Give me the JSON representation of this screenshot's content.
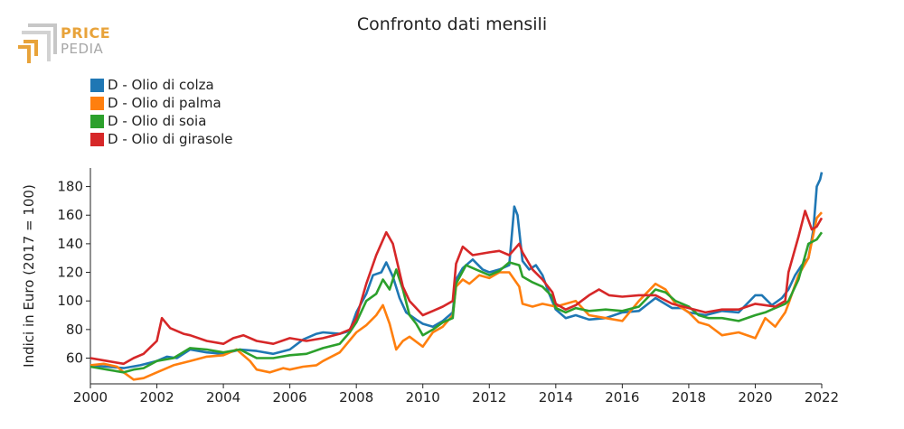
{
  "title": "Confronto dati mensili",
  "logo": {
    "line1": "PRICE",
    "line2": "PEDIA"
  },
  "chart_data": {
    "type": "line",
    "title": "Confronto dati mensili",
    "xlabel": "",
    "ylabel": "Indici in Euro (2017 = 100)",
    "xlim": [
      2000,
      2022
    ],
    "ylim": [
      42,
      193
    ],
    "x_ticks": [
      2000,
      2002,
      2004,
      2006,
      2008,
      2010,
      2012,
      2014,
      2016,
      2018,
      2020,
      2022
    ],
    "y_ticks": [
      60,
      80,
      100,
      120,
      140,
      160,
      180
    ],
    "grid": false,
    "legend_position": "top-left",
    "series": [
      {
        "name": "D - Olio di colza",
        "color": "#1f77b4",
        "points": [
          [
            2000,
            55
          ],
          [
            2000.5,
            54
          ],
          [
            2001,
            53
          ],
          [
            2001.5,
            55
          ],
          [
            2002,
            58
          ],
          [
            2002.3,
            61
          ],
          [
            2002.6,
            60
          ],
          [
            2003,
            66
          ],
          [
            2003.5,
            64
          ],
          [
            2004,
            63
          ],
          [
            2004.5,
            66
          ],
          [
            2005,
            65
          ],
          [
            2005.5,
            63
          ],
          [
            2006,
            66
          ],
          [
            2006.4,
            73
          ],
          [
            2006.8,
            77
          ],
          [
            2007,
            78
          ],
          [
            2007.5,
            77
          ],
          [
            2007.8,
            79
          ],
          [
            2008,
            92
          ],
          [
            2008.3,
            105
          ],
          [
            2008.5,
            118
          ],
          [
            2008.75,
            120
          ],
          [
            2008.9,
            127
          ],
          [
            2009.1,
            117
          ],
          [
            2009.3,
            102
          ],
          [
            2009.5,
            92
          ],
          [
            2009.8,
            87
          ],
          [
            2010,
            84
          ],
          [
            2010.3,
            82
          ],
          [
            2010.6,
            86
          ],
          [
            2010.9,
            92
          ],
          [
            2011,
            115
          ],
          [
            2011.2,
            123
          ],
          [
            2011.5,
            129
          ],
          [
            2011.8,
            122
          ],
          [
            2012,
            120
          ],
          [
            2012.3,
            122
          ],
          [
            2012.6,
            125
          ],
          [
            2012.75,
            166
          ],
          [
            2012.85,
            160
          ],
          [
            2013,
            128
          ],
          [
            2013.2,
            122
          ],
          [
            2013.4,
            125
          ],
          [
            2013.6,
            118
          ],
          [
            2013.8,
            105
          ],
          [
            2014,
            94
          ],
          [
            2014.3,
            88
          ],
          [
            2014.6,
            90
          ],
          [
            2015,
            87
          ],
          [
            2015.5,
            88
          ],
          [
            2016,
            92
          ],
          [
            2016.5,
            93
          ],
          [
            2017,
            102
          ],
          [
            2017.5,
            95
          ],
          [
            2017.8,
            95
          ],
          [
            2018,
            92
          ],
          [
            2018.5,
            90
          ],
          [
            2019,
            93
          ],
          [
            2019.5,
            92
          ],
          [
            2020,
            104
          ],
          [
            2020.2,
            104
          ],
          [
            2020.5,
            97
          ],
          [
            2020.8,
            102
          ],
          [
            2021,
            108
          ],
          [
            2021.2,
            118
          ],
          [
            2021.4,
            125
          ],
          [
            2021.6,
            130
          ],
          [
            2021.75,
            150
          ],
          [
            2021.85,
            180
          ],
          [
            2021.95,
            185
          ],
          [
            2022,
            190
          ]
        ]
      },
      {
        "name": "D - Olio di palma",
        "color": "#ff7f0e",
        "points": [
          [
            2000,
            55
          ],
          [
            2000.4,
            56
          ],
          [
            2000.8,
            54
          ],
          [
            2001,
            50
          ],
          [
            2001.3,
            45
          ],
          [
            2001.6,
            46
          ],
          [
            2002,
            50
          ],
          [
            2002.5,
            55
          ],
          [
            2003,
            58
          ],
          [
            2003.5,
            61
          ],
          [
            2004,
            62
          ],
          [
            2004.4,
            66
          ],
          [
            2004.8,
            58
          ],
          [
            2005,
            52
          ],
          [
            2005.4,
            50
          ],
          [
            2005.8,
            53
          ],
          [
            2006,
            52
          ],
          [
            2006.4,
            54
          ],
          [
            2006.8,
            55
          ],
          [
            2007,
            58
          ],
          [
            2007.5,
            64
          ],
          [
            2008,
            78
          ],
          [
            2008.3,
            83
          ],
          [
            2008.6,
            90
          ],
          [
            2008.8,
            97
          ],
          [
            2009,
            84
          ],
          [
            2009.2,
            66
          ],
          [
            2009.4,
            72
          ],
          [
            2009.6,
            75
          ],
          [
            2010,
            68
          ],
          [
            2010.3,
            78
          ],
          [
            2010.6,
            82
          ],
          [
            2010.9,
            90
          ],
          [
            2011,
            110
          ],
          [
            2011.2,
            115
          ],
          [
            2011.4,
            112
          ],
          [
            2011.7,
            118
          ],
          [
            2012,
            116
          ],
          [
            2012.3,
            120
          ],
          [
            2012.6,
            120
          ],
          [
            2012.9,
            110
          ],
          [
            2013,
            98
          ],
          [
            2013.3,
            96
          ],
          [
            2013.6,
            98
          ],
          [
            2014,
            96
          ],
          [
            2014.3,
            98
          ],
          [
            2014.6,
            100
          ],
          [
            2015,
            90
          ],
          [
            2015.5,
            88
          ],
          [
            2016,
            86
          ],
          [
            2016.5,
            100
          ],
          [
            2017,
            112
          ],
          [
            2017.3,
            108
          ],
          [
            2017.6,
            98
          ],
          [
            2018,
            92
          ],
          [
            2018.3,
            85
          ],
          [
            2018.6,
            83
          ],
          [
            2019,
            76
          ],
          [
            2019.5,
            78
          ],
          [
            2020,
            74
          ],
          [
            2020.3,
            88
          ],
          [
            2020.6,
            82
          ],
          [
            2020.9,
            92
          ],
          [
            2021,
            98
          ],
          [
            2021.3,
            118
          ],
          [
            2021.6,
            130
          ],
          [
            2021.85,
            158
          ],
          [
            2022,
            162
          ]
        ]
      },
      {
        "name": "D - Olio di soia",
        "color": "#2ca02c",
        "points": [
          [
            2000,
            54
          ],
          [
            2000.5,
            52
          ],
          [
            2001,
            50
          ],
          [
            2001.3,
            52
          ],
          [
            2001.6,
            53
          ],
          [
            2002,
            58
          ],
          [
            2002.5,
            60
          ],
          [
            2003,
            67
          ],
          [
            2003.5,
            66
          ],
          [
            2004,
            64
          ],
          [
            2004.5,
            66
          ],
          [
            2005,
            60
          ],
          [
            2005.5,
            60
          ],
          [
            2006,
            62
          ],
          [
            2006.5,
            63
          ],
          [
            2007,
            67
          ],
          [
            2007.5,
            70
          ],
          [
            2007.8,
            78
          ],
          [
            2008,
            85
          ],
          [
            2008.3,
            100
          ],
          [
            2008.6,
            105
          ],
          [
            2008.8,
            115
          ],
          [
            2009,
            108
          ],
          [
            2009.2,
            122
          ],
          [
            2009.4,
            108
          ],
          [
            2009.6,
            90
          ],
          [
            2009.8,
            84
          ],
          [
            2010,
            76
          ],
          [
            2010.3,
            80
          ],
          [
            2010.6,
            85
          ],
          [
            2010.9,
            88
          ],
          [
            2011,
            112
          ],
          [
            2011.3,
            125
          ],
          [
            2011.6,
            122
          ],
          [
            2012,
            118
          ],
          [
            2012.3,
            121
          ],
          [
            2012.6,
            127
          ],
          [
            2012.9,
            125
          ],
          [
            2013,
            117
          ],
          [
            2013.3,
            113
          ],
          [
            2013.6,
            110
          ],
          [
            2013.9,
            103
          ],
          [
            2014,
            95
          ],
          [
            2014.3,
            92
          ],
          [
            2014.6,
            95
          ],
          [
            2015,
            93
          ],
          [
            2015.5,
            94
          ],
          [
            2016,
            93
          ],
          [
            2016.5,
            96
          ],
          [
            2017,
            108
          ],
          [
            2017.3,
            106
          ],
          [
            2017.6,
            100
          ],
          [
            2018,
            96
          ],
          [
            2018.3,
            90
          ],
          [
            2018.6,
            88
          ],
          [
            2019,
            88
          ],
          [
            2019.5,
            86
          ],
          [
            2020,
            90
          ],
          [
            2020.3,
            92
          ],
          [
            2020.6,
            95
          ],
          [
            2020.9,
            98
          ],
          [
            2021,
            100
          ],
          [
            2021.3,
            115
          ],
          [
            2021.6,
            140
          ],
          [
            2021.85,
            143
          ],
          [
            2022,
            148
          ]
        ]
      },
      {
        "name": "D - Olio di girasole",
        "color": "#d62728",
        "points": [
          [
            2000,
            60
          ],
          [
            2000.5,
            58
          ],
          [
            2001,
            56
          ],
          [
            2001.3,
            60
          ],
          [
            2001.6,
            63
          ],
          [
            2002,
            72
          ],
          [
            2002.15,
            88
          ],
          [
            2002.4,
            81
          ],
          [
            2002.8,
            77
          ],
          [
            2003,
            76
          ],
          [
            2003.5,
            72
          ],
          [
            2004,
            70
          ],
          [
            2004.3,
            74
          ],
          [
            2004.6,
            76
          ],
          [
            2005,
            72
          ],
          [
            2005.5,
            70
          ],
          [
            2006,
            74
          ],
          [
            2006.5,
            72
          ],
          [
            2007,
            74
          ],
          [
            2007.5,
            77
          ],
          [
            2007.8,
            80
          ],
          [
            2008,
            88
          ],
          [
            2008.3,
            112
          ],
          [
            2008.6,
            132
          ],
          [
            2008.9,
            148
          ],
          [
            2009.1,
            140
          ],
          [
            2009.4,
            110
          ],
          [
            2009.6,
            100
          ],
          [
            2010,
            90
          ],
          [
            2010.3,
            93
          ],
          [
            2010.6,
            96
          ],
          [
            2010.9,
            100
          ],
          [
            2011,
            126
          ],
          [
            2011.2,
            138
          ],
          [
            2011.5,
            132
          ],
          [
            2012,
            134
          ],
          [
            2012.3,
            135
          ],
          [
            2012.6,
            132
          ],
          [
            2012.9,
            140
          ],
          [
            2013,
            134
          ],
          [
            2013.3,
            122
          ],
          [
            2013.6,
            115
          ],
          [
            2013.9,
            106
          ],
          [
            2014,
            98
          ],
          [
            2014.3,
            94
          ],
          [
            2014.6,
            97
          ],
          [
            2015,
            104
          ],
          [
            2015.3,
            108
          ],
          [
            2015.6,
            104
          ],
          [
            2016,
            103
          ],
          [
            2016.5,
            104
          ],
          [
            2017,
            104
          ],
          [
            2017.5,
            98
          ],
          [
            2018,
            95
          ],
          [
            2018.5,
            92
          ],
          [
            2019,
            94
          ],
          [
            2019.5,
            94
          ],
          [
            2020,
            98
          ],
          [
            2020.3,
            97
          ],
          [
            2020.6,
            96
          ],
          [
            2020.9,
            100
          ],
          [
            2021,
            120
          ],
          [
            2021.3,
            145
          ],
          [
            2021.5,
            163
          ],
          [
            2021.7,
            150
          ],
          [
            2021.85,
            152
          ],
          [
            2022,
            158
          ]
        ]
      }
    ]
  }
}
